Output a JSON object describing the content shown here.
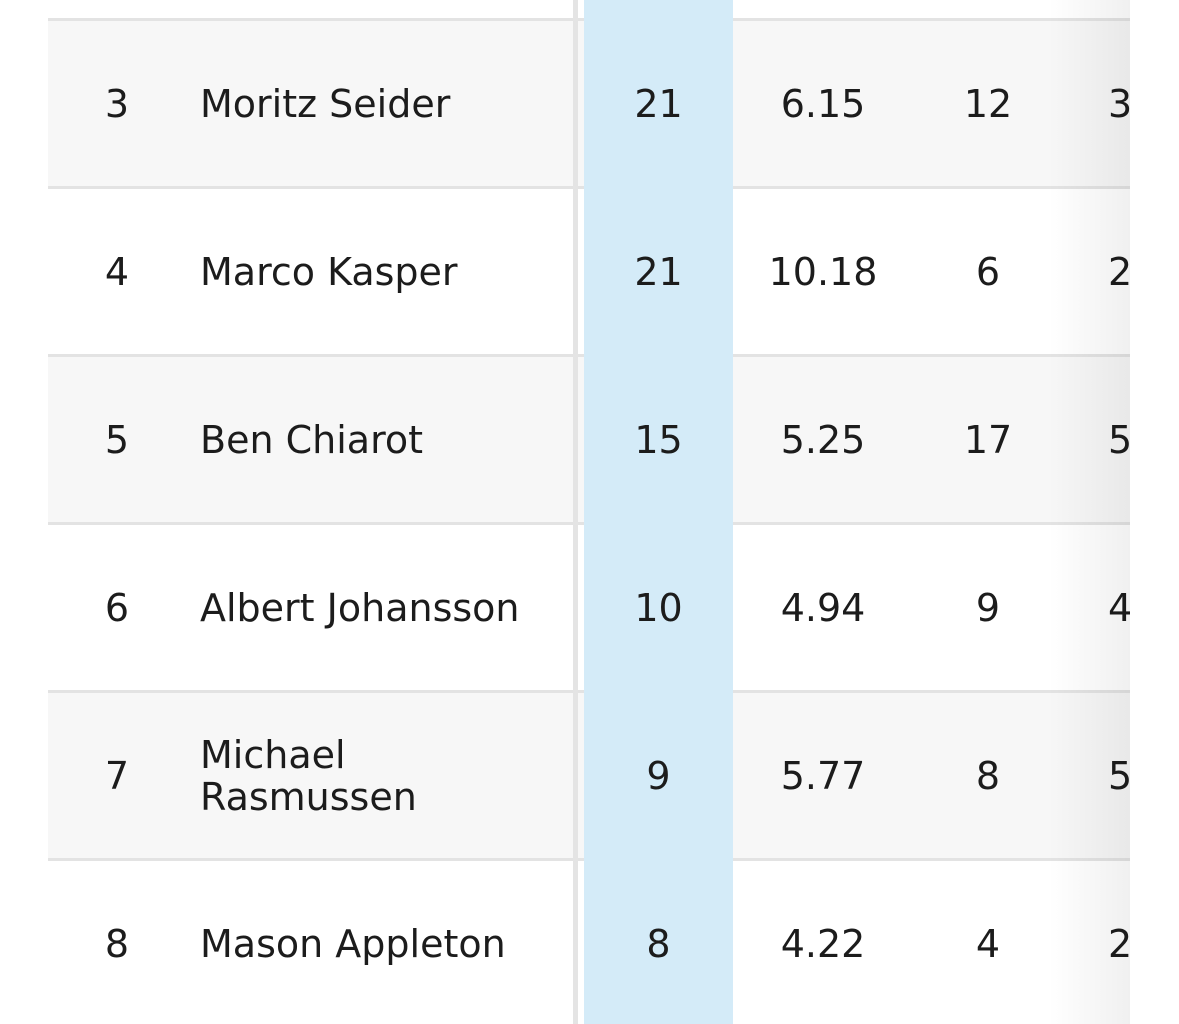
{
  "table": {
    "rows": [
      [
        "3",
        "Moritz Seider",
        "21",
        "6.15",
        "12",
        "3"
      ],
      [
        "4",
        "Marco Kasper",
        "21",
        "10.18",
        "6",
        "2"
      ],
      [
        "5",
        "Ben Chiarot",
        "15",
        "5.25",
        "17",
        "5"
      ],
      [
        "6",
        "Albert Johansson",
        "10",
        "4.94",
        "9",
        "4"
      ],
      [
        "7",
        "Michael Rasmussen",
        "9",
        "5.77",
        "8",
        "5"
      ],
      [
        "8",
        "Mason Appleton",
        "8",
        "4.22",
        "4",
        "2"
      ]
    ]
  }
}
